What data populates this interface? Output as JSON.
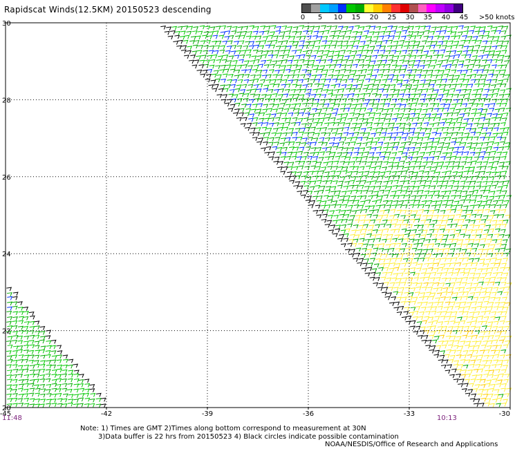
{
  "title": "Rapidscat Winds(12.5KM) 20150523 descending",
  "colorbar": {
    "colors": [
      "#505050",
      "#a0a0a0",
      "#00c8ff",
      "#00a0ff",
      "#0030ff",
      "#00c800",
      "#00aa00",
      "#ffff33",
      "#ffcc00",
      "#ff8000",
      "#ff3030",
      "#e00000",
      "#b05050",
      "#ff60c0",
      "#ff00ff",
      "#c000ff",
      "#9000e0",
      "#400080"
    ],
    "labels": [
      "0",
      "5",
      "10",
      "15",
      "20",
      "25",
      "30",
      "35",
      "40",
      "45",
      ">50 knots"
    ],
    "label_offsets": [
      2,
      27,
      53,
      79,
      105,
      131,
      157,
      183,
      209,
      235,
      262
    ]
  },
  "map": {
    "lon_range": [
      -45,
      -30
    ],
    "lat_range": [
      20,
      30
    ],
    "lon_ticks": [
      -45,
      -42,
      -39,
      -36,
      -33,
      -30
    ],
    "lon_tick_labels": [
      "-45",
      "-42",
      "-39",
      "-36",
      "-33",
      "-30"
    ],
    "lat_ticks": [
      20,
      22,
      24,
      26,
      28,
      30
    ],
    "lat_tick_labels": [
      "20",
      "22",
      "24",
      "26",
      "28",
      "30"
    ]
  },
  "times": {
    "start": "11:48",
    "end": "10:13"
  },
  "notes": [
    "Note: 1) Times are GMT 2)Times along bottom correspond to measurement at 30N",
    "3)Data buffer is 22 hrs from 20150523 4) Black circles indicate possible contamination"
  ],
  "credit": "NOAA/NESDIS/Office of Research and Applications",
  "swaths": [
    {
      "name": "eastern-swath",
      "west_lon_at_lat30": -40.5,
      "east_lon_at_lat30": -30.0,
      "slope_lon_per_lat": 0.95
    },
    {
      "name": "western-swath",
      "west_lon_at_lat20": -45.0,
      "east_lon_at_lat20": -41.8,
      "slope_lon_per_lat": 0.95
    }
  ]
}
